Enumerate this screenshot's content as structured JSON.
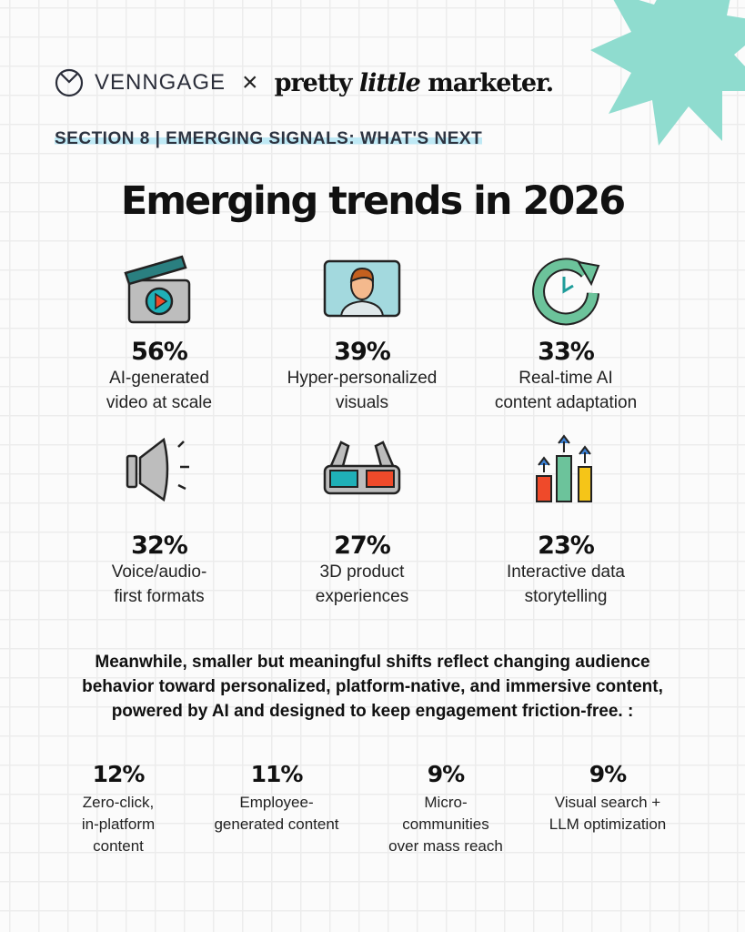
{
  "header": {
    "brand1": "VENNGAGE",
    "separator": "×",
    "brand2_a": "pretty ",
    "brand2_b": "little",
    "brand2_c": " marketer."
  },
  "section_label": "SECTION 8 | EMERGING SIGNALS: WHAT'S NEXT",
  "title": "Emerging trends in 2026",
  "colors": {
    "accent_teal": "#8fdccf",
    "highlight": "#bfe9f5"
  },
  "trends": [
    {
      "pct": "56%",
      "line1": "AI-generated",
      "line2": "video at scale",
      "icon": "clapperboard-icon"
    },
    {
      "pct": "39%",
      "line1": "Hyper-personalized",
      "line2": "visuals",
      "icon": "person-portrait-icon"
    },
    {
      "pct": "33%",
      "line1": "Real-time AI",
      "line2": "content adaptation",
      "icon": "clock-refresh-icon"
    },
    {
      "pct": "32%",
      "line1": "Voice/audio-",
      "line2": "first formats",
      "icon": "megaphone-icon"
    },
    {
      "pct": "27%",
      "line1": "3D product",
      "line2": "experiences",
      "icon": "3d-glasses-icon"
    },
    {
      "pct": "23%",
      "line1": "Interactive data",
      "line2": "storytelling",
      "icon": "bar-chart-arrows-icon"
    }
  ],
  "paragraph": {
    "line1": "Meanwhile, smaller but meaningful shifts reflect changing audience",
    "line2": "behavior toward personalized, platform-native, and immersive content,",
    "line3": "powered by AI and designed to keep engagement friction-free. :"
  },
  "shifts": [
    {
      "pct": "12%",
      "lines": [
        "Zero-click,",
        "in-platform",
        "content"
      ]
    },
    {
      "pct": "11%",
      "lines": [
        "Employee-",
        "generated content"
      ]
    },
    {
      "pct": "9%",
      "lines": [
        "Micro-",
        "communities",
        "over mass reach"
      ]
    },
    {
      "pct": "9%",
      "lines": [
        "Visual search +",
        "LLM optimization"
      ]
    }
  ]
}
